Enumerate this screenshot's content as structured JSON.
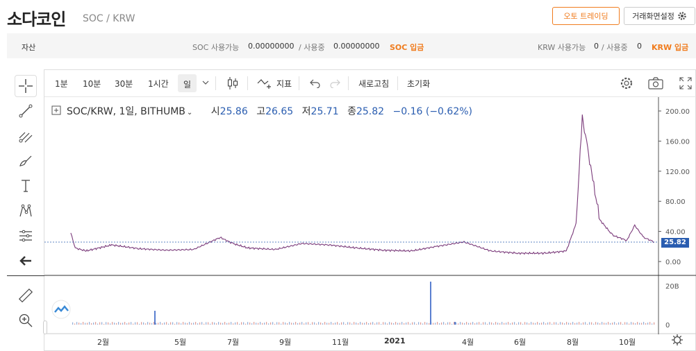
{
  "header": {
    "coin_name": "소다코인",
    "pair": "SOC / KRW",
    "auto_trading_label": "오토 트레이딩",
    "screen_settings_label": "거래화면설정"
  },
  "balance": {
    "asset_label": "자산",
    "soc_available_label": "SOC 사용가능",
    "soc_available_value": "0.00000000",
    "soc_in_use_label": "/ 사용중",
    "soc_in_use_value": "0.00000000",
    "soc_deposit_label": "SOC 입금",
    "krw_available_label": "KRW 사용가능",
    "krw_available_value": "0",
    "krw_in_use_label": "/ 사용중",
    "krw_in_use_value": "0",
    "krw_deposit_label": "KRW 입금"
  },
  "toolbar": {
    "intervals": [
      "1분",
      "10분",
      "30분",
      "1시간",
      "일"
    ],
    "indicator_label": "지표",
    "refresh_label": "새로고침",
    "reset_label": "초기화"
  },
  "legend": {
    "symbol": "SOC/KRW, 1일, BITHUMB",
    "open_label": "시",
    "open": "25.86",
    "high_label": "고",
    "high": "26.65",
    "low_label": "저",
    "low": "25.71",
    "close_label": "종",
    "close": "25.82",
    "change": "−0.16 (−0.62%)"
  },
  "icons": {
    "crosshair": "crosshair-icon",
    "trendline": "trendline-icon",
    "fib": "fib-icon",
    "brush": "brush-icon",
    "text": "text-icon",
    "pattern": "pattern-icon",
    "measure": "measure-icon",
    "back": "arrow-left-icon",
    "ruler": "ruler-icon",
    "zoom": "zoom-in-icon",
    "settings": "gear-icon",
    "camera": "camera-icon",
    "fullscreen": "fullscreen-icon"
  },
  "colors": {
    "accent": "#f07c1e",
    "up": "#c0392b",
    "down": "#2a5db0"
  },
  "chart_data": {
    "type": "line",
    "price_axis_ticks": [
      "200.00",
      "160.00",
      "120.00",
      "80.00",
      "40.00",
      "0.00"
    ],
    "volume_axis_ticks": [
      "20B",
      "0"
    ],
    "last_price_tag": "25.82",
    "x_ticks": [
      "2월",
      "5월",
      "7월",
      "9월",
      "11월",
      "2021",
      "4월",
      "6월",
      "8월",
      "10월"
    ],
    "price_series": [
      {
        "x": "2020-01-15",
        "y": 38
      },
      {
        "x": "2020-01-20",
        "y": 18
      },
      {
        "x": "2020-02-01",
        "y": 14
      },
      {
        "x": "2020-03-01",
        "y": 22
      },
      {
        "x": "2020-04-01",
        "y": 17
      },
      {
        "x": "2020-05-01",
        "y": 15
      },
      {
        "x": "2020-06-01",
        "y": 16
      },
      {
        "x": "2020-07-01",
        "y": 32
      },
      {
        "x": "2020-07-15",
        "y": 24
      },
      {
        "x": "2020-08-01",
        "y": 18
      },
      {
        "x": "2020-09-01",
        "y": 16
      },
      {
        "x": "2020-10-01",
        "y": 24
      },
      {
        "x": "2020-11-01",
        "y": 22
      },
      {
        "x": "2020-12-01",
        "y": 18
      },
      {
        "x": "2021-01-01",
        "y": 15
      },
      {
        "x": "2021-02-01",
        "y": 14
      },
      {
        "x": "2021-03-01",
        "y": 20
      },
      {
        "x": "2021-04-01",
        "y": 26
      },
      {
        "x": "2021-05-01",
        "y": 14
      },
      {
        "x": "2021-06-01",
        "y": 11
      },
      {
        "x": "2021-07-01",
        "y": 11
      },
      {
        "x": "2021-07-25",
        "y": 14
      },
      {
        "x": "2021-08-05",
        "y": 50
      },
      {
        "x": "2021-08-12",
        "y": 192
      },
      {
        "x": "2021-08-18",
        "y": 150
      },
      {
        "x": "2021-08-25",
        "y": 100
      },
      {
        "x": "2021-09-01",
        "y": 55
      },
      {
        "x": "2021-09-15",
        "y": 35
      },
      {
        "x": "2021-10-01",
        "y": 28
      },
      {
        "x": "2021-10-10",
        "y": 48
      },
      {
        "x": "2021-10-20",
        "y": 32
      },
      {
        "x": "2021-11-01",
        "y": 26
      }
    ]
  }
}
